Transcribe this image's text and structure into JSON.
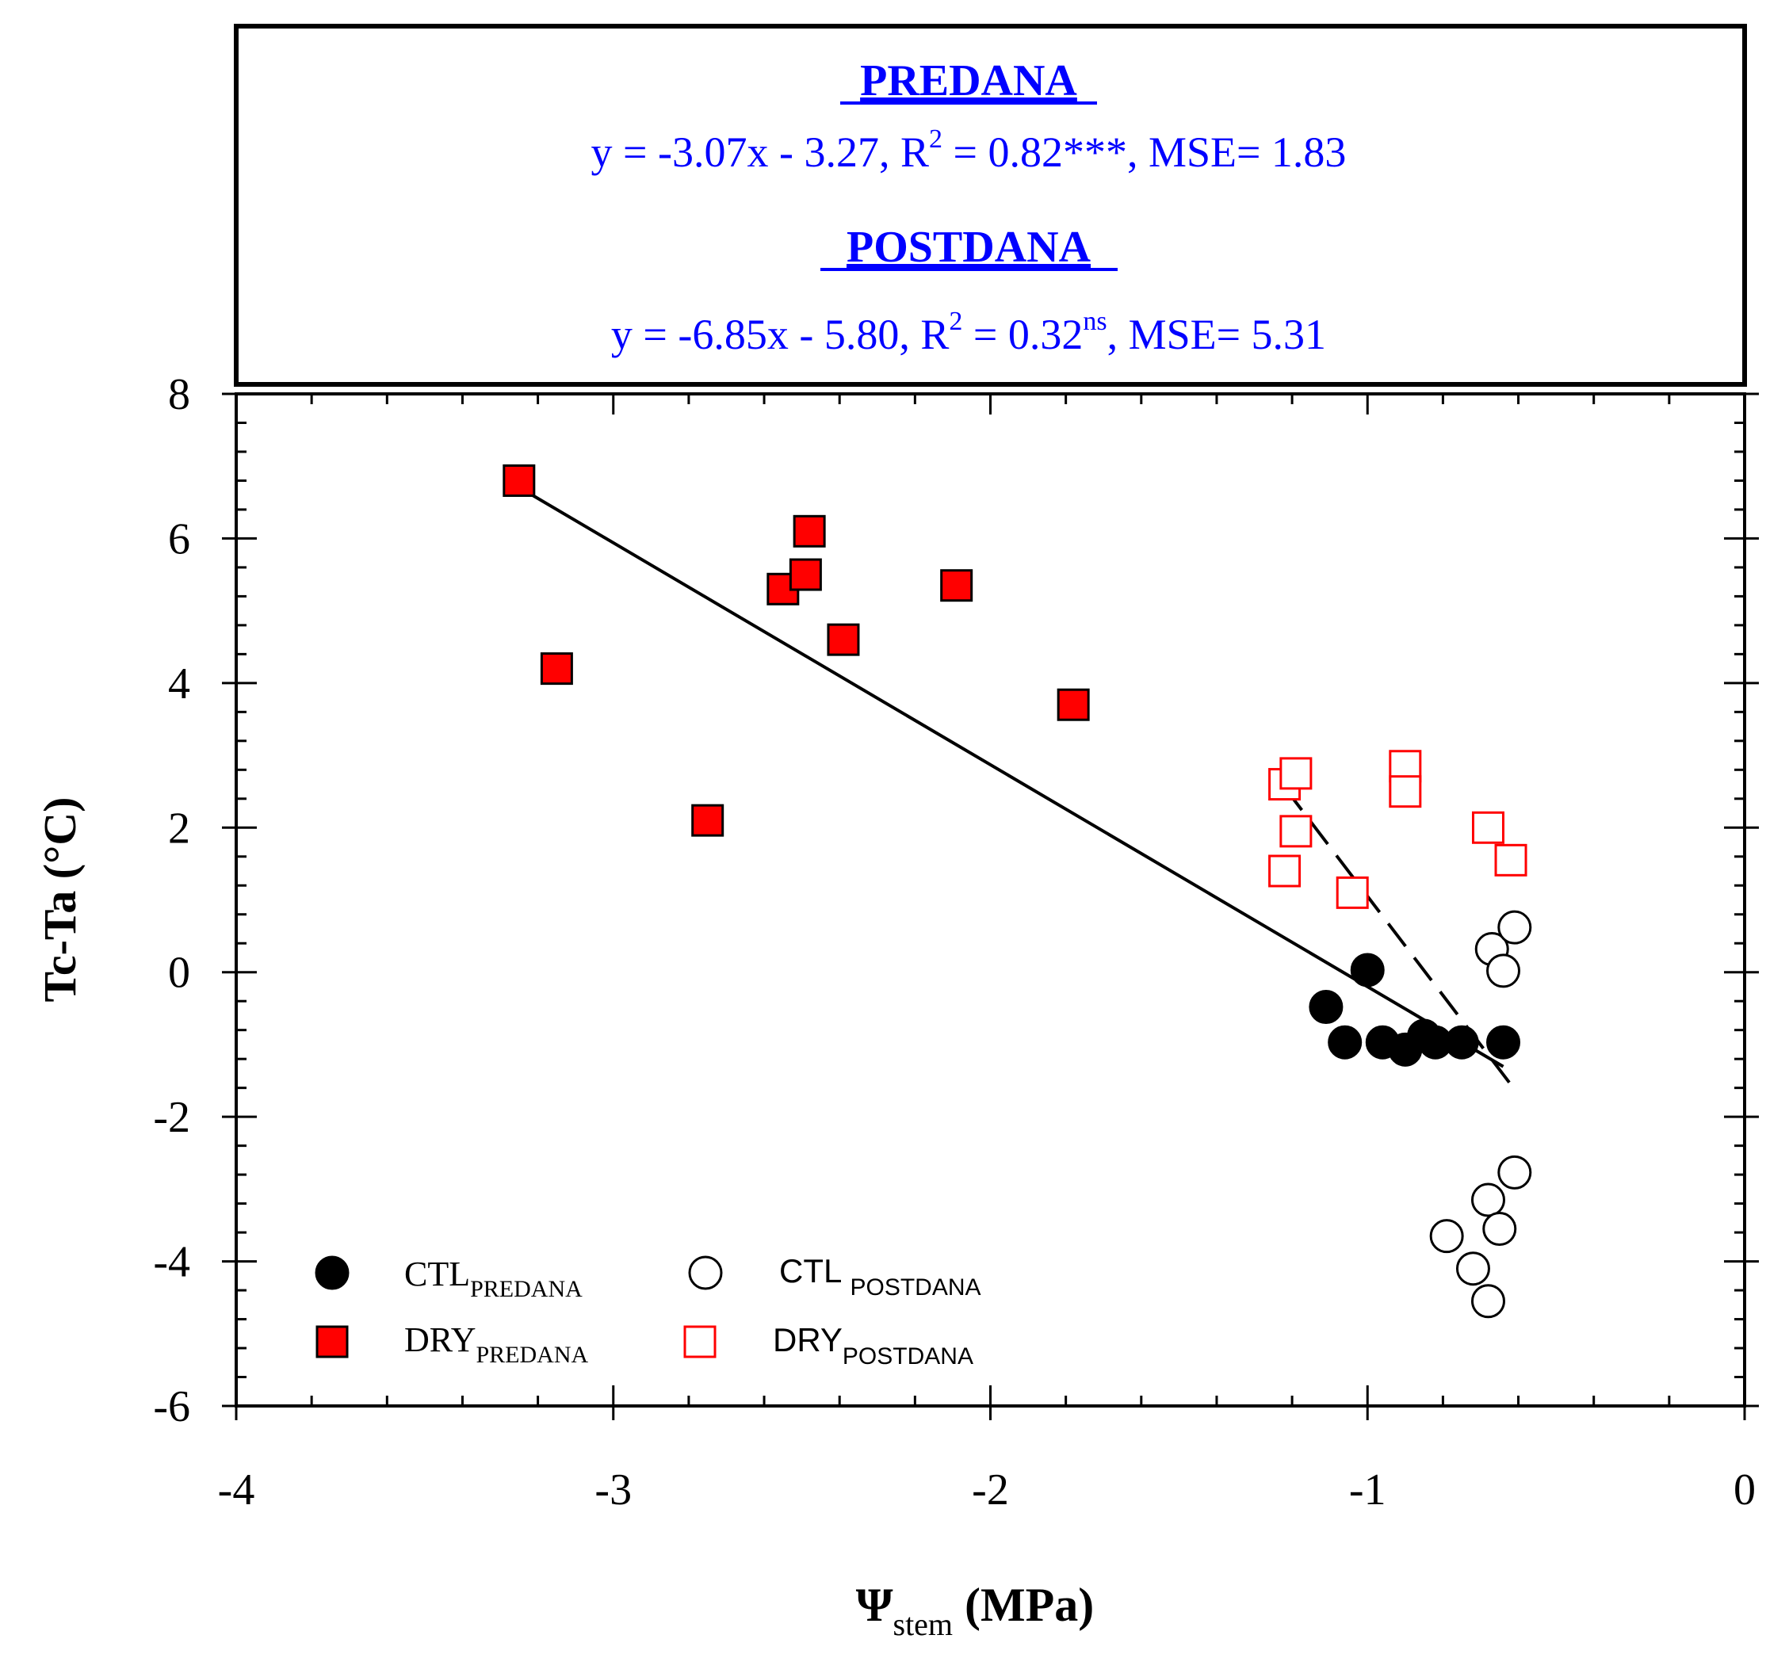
{
  "chart_data": {
    "type": "scatter",
    "title_box": {
      "groups": [
        {
          "heading": "PREDANA",
          "eq_main": "y = -3.07x - 3.27, R",
          "eq_sup": "2",
          "eq_mid": " = 0.82***, MSE= 1.83"
        },
        {
          "heading": "POSTDANA",
          "eq_main": "y = -6.85x - 5.80, R",
          "eq_sup": "2",
          "eq_mid": " = 0.32",
          "eq_sup2": "ns",
          "eq_tail": ", MSE= 5.31"
        }
      ]
    },
    "xlabel": {
      "symbol": "Ψ",
      "sub": "stem",
      "unit": " (MPa)"
    },
    "ylabel": "Tc-Ta (°C)",
    "xlim": [
      -4,
      0
    ],
    "ylim": [
      -6,
      8
    ],
    "x_ticks": [
      {
        "v": -4,
        "label": "-4"
      },
      {
        "v": -3,
        "label": "-3"
      },
      {
        "v": -2,
        "label": "-2"
      },
      {
        "v": -1,
        "label": "-1"
      },
      {
        "v": 0,
        "label": "0"
      }
    ],
    "y_ticks": [
      {
        "v": -6,
        "label": "-6"
      },
      {
        "v": -4,
        "label": "-4"
      },
      {
        "v": -2,
        "label": "-2"
      },
      {
        "v": 0,
        "label": "0"
      },
      {
        "v": 2,
        "label": "2"
      },
      {
        "v": 4,
        "label": "4"
      },
      {
        "v": 6,
        "label": "6"
      },
      {
        "v": 8,
        "label": "8"
      }
    ],
    "series": [
      {
        "name": "CTL_PREDANA",
        "marker": "circle",
        "filled": true,
        "color": "#000000",
        "legend_main": "CTL",
        "legend_sub": "PREDANA",
        "points": [
          [
            -1.11,
            -0.48
          ],
          [
            -1.06,
            -0.97
          ],
          [
            -1.0,
            0.03
          ],
          [
            -0.96,
            -0.97
          ],
          [
            -0.9,
            -1.07
          ],
          [
            -0.85,
            -0.88
          ],
          [
            -0.82,
            -0.97
          ],
          [
            -0.75,
            -0.97
          ],
          [
            -0.64,
            -0.97
          ]
        ]
      },
      {
        "name": "CTL_POSTDANA",
        "marker": "circle",
        "filled": false,
        "color": "#000000",
        "legend_main": "CTL ",
        "legend_sub": "POSTDANA",
        "points": [
          [
            -0.79,
            -3.65
          ],
          [
            -0.72,
            -4.1
          ],
          [
            -0.68,
            -4.55
          ],
          [
            -0.68,
            -3.15
          ],
          [
            -0.65,
            -3.55
          ],
          [
            -0.61,
            -2.77
          ],
          [
            -0.67,
            0.32
          ],
          [
            -0.64,
            0.02
          ],
          [
            -0.61,
            0.62
          ]
        ]
      },
      {
        "name": "DRY_PREDANA",
        "marker": "square",
        "filled": true,
        "color": "#ff0000",
        "legend_main": "DRY",
        "legend_sub": "PREDANA",
        "points": [
          [
            -3.25,
            6.8
          ],
          [
            -3.15,
            4.2
          ],
          [
            -2.75,
            2.1
          ],
          [
            -2.55,
            5.3
          ],
          [
            -2.48,
            6.1
          ],
          [
            -2.49,
            5.5
          ],
          [
            -2.39,
            4.6
          ],
          [
            -2.09,
            5.35
          ],
          [
            -1.78,
            3.7
          ]
        ]
      },
      {
        "name": "DRY_POSTDANA",
        "marker": "square",
        "filled": false,
        "color": "#ff0000",
        "legend_main": "DRY",
        "legend_sub": "POSTDANA",
        "points": [
          [
            -1.22,
            2.6
          ],
          [
            -1.19,
            2.75
          ],
          [
            -1.19,
            1.95
          ],
          [
            -1.22,
            1.4
          ],
          [
            -1.04,
            1.1
          ],
          [
            -0.9,
            2.85
          ],
          [
            -0.9,
            2.5
          ],
          [
            -0.68,
            2.0
          ],
          [
            -0.62,
            1.55
          ]
        ]
      }
    ],
    "fit_lines": [
      {
        "name": "PREDANA fit",
        "style": "solid",
        "x": [
          -3.25,
          -0.64
        ]
      },
      {
        "name": "POSTDANA fit",
        "style": "dashed",
        "x": [
          -1.22,
          -0.61
        ]
      }
    ]
  }
}
